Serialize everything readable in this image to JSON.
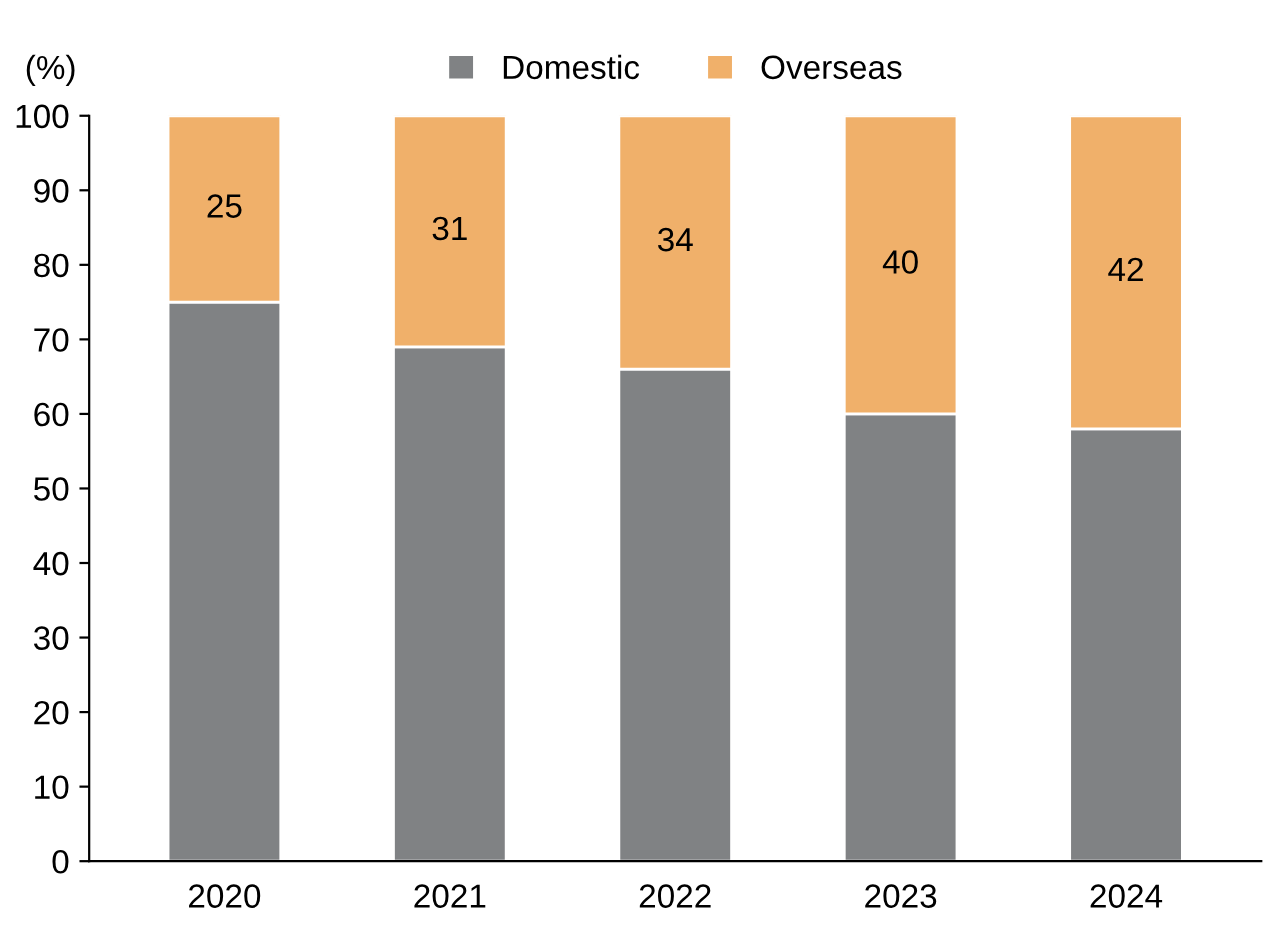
{
  "chart_data": {
    "type": "bar",
    "stacked": true,
    "ylabel": "(%)",
    "categories": [
      "2020",
      "2021",
      "2022",
      "2023",
      "2024"
    ],
    "series": [
      {
        "name": "Domestic",
        "color": "#808284",
        "values": [
          75,
          69,
          66,
          60,
          58
        ]
      },
      {
        "name": "Overseas",
        "color": "#f0b06a",
        "values": [
          25,
          31,
          34,
          40,
          42
        ],
        "value_labels": [
          "25",
          "31",
          "34",
          "40",
          "42"
        ]
      }
    ],
    "ylim": [
      0,
      100
    ],
    "yticks": [
      0,
      10,
      20,
      30,
      40,
      50,
      60,
      70,
      80,
      90,
      100
    ],
    "grid": false,
    "legend": "top"
  }
}
